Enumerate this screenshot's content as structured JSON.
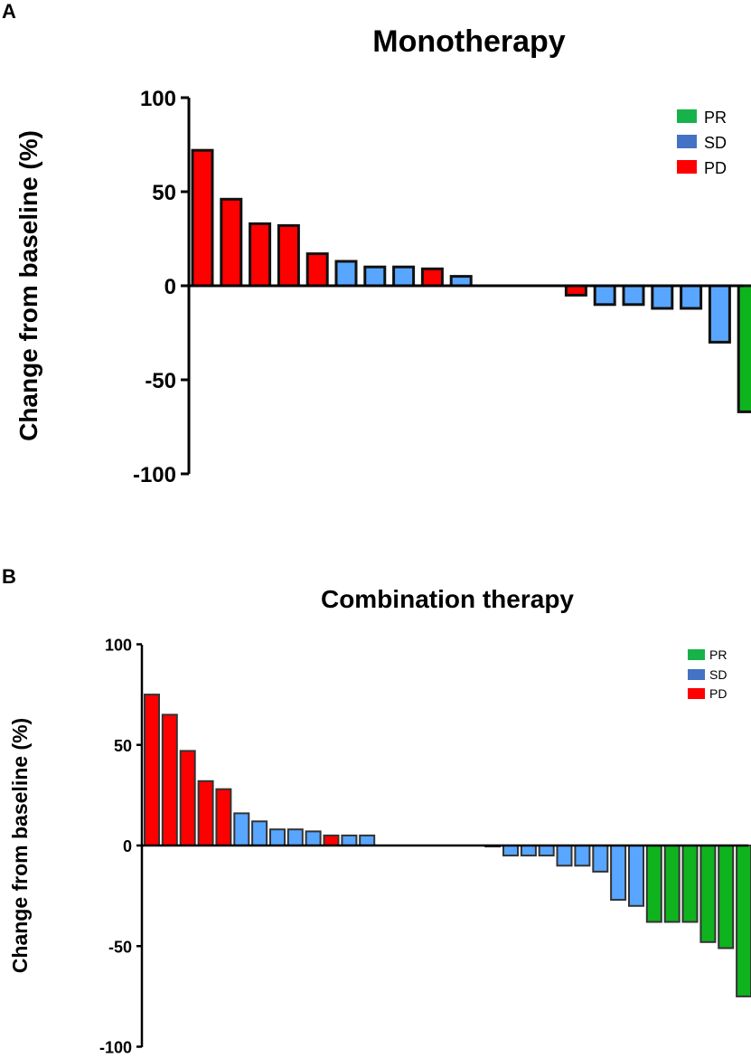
{
  "panels": [
    {
      "letter": "A",
      "title": "Monotherapy",
      "ylabel": "Change from baseline (%)",
      "ytick_labels": [
        "100",
        "50",
        "0",
        "-50",
        "-100"
      ],
      "legend": [
        {
          "label": "PR",
          "color": "#17b24a"
        },
        {
          "label": "SD",
          "color": "#4472c4"
        },
        {
          "label": "PD",
          "color": "#ff0000"
        }
      ]
    },
    {
      "letter": "B",
      "title": "Combination therapy",
      "ylabel": "Change from baseline (%)",
      "ytick_labels": [
        "100",
        "50",
        "0",
        "-50",
        "-100"
      ],
      "legend": [
        {
          "label": "PR",
          "color": "#17b24a"
        },
        {
          "label": "SD",
          "color": "#4472c4"
        },
        {
          "label": "PD",
          "color": "#ff0000"
        }
      ]
    }
  ],
  "colors": {
    "PR": "#0fb31e",
    "SD": "#58a6ff",
    "PD": "#ff0000",
    "edge_a": "#111111",
    "edge_b": "#333333"
  },
  "chart_data": [
    {
      "type": "bar",
      "title": "Monotherapy",
      "xlabel": "",
      "ylabel": "Change from baseline (%)",
      "ylim": [
        -100,
        100
      ],
      "yticks": [
        100,
        50,
        0,
        -50,
        -100
      ],
      "legend": [
        "PR",
        "SD",
        "PD"
      ],
      "legend_position": "top-right",
      "n_slots": 20,
      "bars": [
        {
          "slot": 0,
          "value": 72,
          "response": "PD"
        },
        {
          "slot": 1,
          "value": 46,
          "response": "PD"
        },
        {
          "slot": 2,
          "value": 33,
          "response": "PD"
        },
        {
          "slot": 3,
          "value": 32,
          "response": "PD"
        },
        {
          "slot": 4,
          "value": 17,
          "response": "PD"
        },
        {
          "slot": 5,
          "value": 13,
          "response": "SD"
        },
        {
          "slot": 6,
          "value": 10,
          "response": "SD"
        },
        {
          "slot": 7,
          "value": 10,
          "response": "SD"
        },
        {
          "slot": 8,
          "value": 9,
          "response": "PD"
        },
        {
          "slot": 9,
          "value": 5,
          "response": "SD"
        },
        {
          "slot": 13,
          "value": -5,
          "response": "PD"
        },
        {
          "slot": 14,
          "value": -10,
          "response": "SD"
        },
        {
          "slot": 15,
          "value": -10,
          "response": "SD"
        },
        {
          "slot": 16,
          "value": -12,
          "response": "SD"
        },
        {
          "slot": 17,
          "value": -12,
          "response": "SD"
        },
        {
          "slot": 18,
          "value": -30,
          "response": "SD"
        },
        {
          "slot": 19,
          "value": -67,
          "response": "PR"
        }
      ]
    },
    {
      "type": "bar",
      "title": "Combination therapy",
      "xlabel": "",
      "ylabel": "Change from baseline (%)",
      "ylim": [
        -100,
        100
      ],
      "yticks": [
        100,
        50,
        0,
        -50,
        -100
      ],
      "legend": [
        "PR",
        "SD",
        "PD"
      ],
      "legend_position": "top-right",
      "n_slots": 34,
      "bars": [
        {
          "slot": 0,
          "value": 75,
          "response": "PD"
        },
        {
          "slot": 1,
          "value": 65,
          "response": "PD"
        },
        {
          "slot": 2,
          "value": 47,
          "response": "PD"
        },
        {
          "slot": 3,
          "value": 32,
          "response": "PD"
        },
        {
          "slot": 4,
          "value": 28,
          "response": "PD"
        },
        {
          "slot": 5,
          "value": 16,
          "response": "SD"
        },
        {
          "slot": 6,
          "value": 12,
          "response": "SD"
        },
        {
          "slot": 7,
          "value": 8,
          "response": "SD"
        },
        {
          "slot": 8,
          "value": 8,
          "response": "SD"
        },
        {
          "slot": 9,
          "value": 7,
          "response": "SD"
        },
        {
          "slot": 10,
          "value": 5,
          "response": "PD"
        },
        {
          "slot": 11,
          "value": 5,
          "response": "SD"
        },
        {
          "slot": 12,
          "value": 5,
          "response": "SD"
        },
        {
          "slot": 19,
          "value": -0.5,
          "response": "SD"
        },
        {
          "slot": 20,
          "value": -5,
          "response": "SD"
        },
        {
          "slot": 21,
          "value": -5,
          "response": "SD"
        },
        {
          "slot": 22,
          "value": -5,
          "response": "SD"
        },
        {
          "slot": 23,
          "value": -10,
          "response": "SD"
        },
        {
          "slot": 24,
          "value": -10,
          "response": "SD"
        },
        {
          "slot": 25,
          "value": -13,
          "response": "SD"
        },
        {
          "slot": 26,
          "value": -27,
          "response": "SD"
        },
        {
          "slot": 27,
          "value": -30,
          "response": "SD"
        },
        {
          "slot": 28,
          "value": -38,
          "response": "PR"
        },
        {
          "slot": 29,
          "value": -38,
          "response": "PR"
        },
        {
          "slot": 30,
          "value": -38,
          "response": "PR"
        },
        {
          "slot": 31,
          "value": -48,
          "response": "PR"
        },
        {
          "slot": 32,
          "value": -51,
          "response": "PR"
        },
        {
          "slot": 33,
          "value": -75,
          "response": "PR"
        }
      ]
    }
  ]
}
